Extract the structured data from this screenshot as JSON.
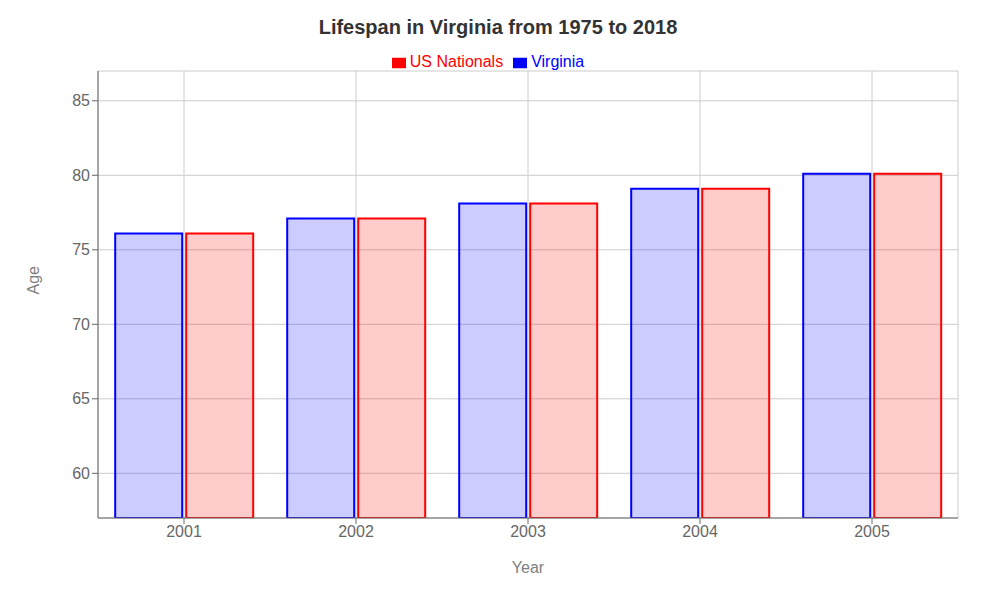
{
  "chart_data": {
    "type": "bar",
    "title": "Lifespan in Virginia from 1975 to 2018",
    "xlabel": "Year",
    "ylabel": "Age",
    "categories": [
      "2001",
      "2002",
      "2003",
      "2004",
      "2005"
    ],
    "series": [
      {
        "name": "Virginia",
        "color": "#0000ff",
        "values": [
          76.1,
          77.1,
          78.1,
          79.1,
          80.1
        ]
      },
      {
        "name": "US Nationals",
        "color": "#ff0000",
        "values": [
          76.1,
          77.1,
          78.1,
          79.1,
          80.1
        ]
      }
    ],
    "ylim": [
      57,
      87
    ],
    "yticks": [
      60,
      65,
      70,
      75,
      80,
      85
    ],
    "grid": true,
    "legend": "top"
  }
}
